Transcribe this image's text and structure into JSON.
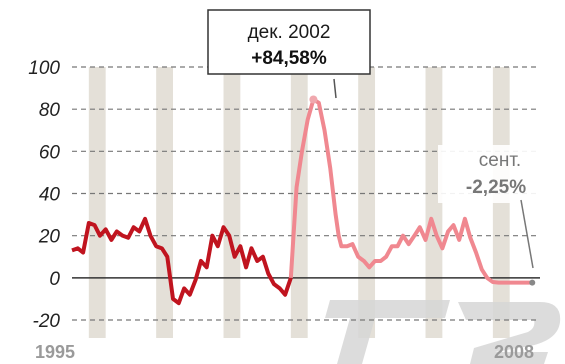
{
  "chart_data": {
    "type": "line",
    "xlim": [
      1995,
      2008.9
    ],
    "ylim": [
      -20,
      100
    ],
    "y_ticks": [
      100,
      80,
      60,
      40,
      20,
      0,
      -20
    ],
    "x_tick_labels": [
      "1995",
      "2008"
    ],
    "grid": true,
    "series": [
      {
        "x": [
          1995.0,
          1995.17,
          1995.33,
          1995.5,
          1995.67,
          1995.83,
          1996.0,
          1996.17,
          1996.33,
          1996.5,
          1996.67,
          1996.83,
          1997.0,
          1997.17,
          1997.33,
          1997.5,
          1997.67,
          1997.83,
          1998.0,
          1998.17,
          1998.33,
          1998.5,
          1998.67,
          1998.83,
          1999.0,
          1999.17,
          1999.33,
          1999.5,
          1999.67,
          1999.83,
          2000.0,
          2000.17,
          2000.33,
          2000.5,
          2000.67,
          2000.83,
          2001.0,
          2001.17,
          2001.33,
          2001.5,
          2001.67,
          2001.83,
          2002.0,
          2002.17,
          2002.33,
          2002.5,
          2002.67,
          2002.83,
          2002.92,
          2003.0,
          2003.17,
          2003.33,
          2003.5,
          2003.67,
          2003.83,
          2004.0,
          2004.17,
          2004.33,
          2004.5,
          2004.67,
          2004.83,
          2005.0,
          2005.17,
          2005.33,
          2005.5,
          2005.67,
          2005.83,
          2006.0,
          2006.17,
          2006.33,
          2006.5,
          2006.67,
          2006.83,
          2007.0,
          2007.17,
          2007.33,
          2007.5,
          2007.67,
          2007.83,
          2008.0,
          2008.17,
          2008.33,
          2008.5,
          2008.67
        ],
        "values": [
          13,
          14,
          12,
          26,
          25,
          20,
          23,
          18,
          22,
          20,
          19,
          24,
          22,
          28,
          20,
          15,
          14,
          10,
          -10,
          -12,
          -5,
          -8,
          -1,
          8,
          5,
          20,
          15,
          24,
          20,
          10,
          15,
          5,
          14,
          8,
          10,
          2,
          -3,
          -5,
          -8,
          0,
          43,
          60,
          75,
          84.58,
          83,
          70,
          52,
          30,
          20,
          15,
          15,
          16,
          10,
          8,
          5,
          8,
          8,
          10,
          15,
          15,
          20,
          16,
          20,
          24,
          18,
          28,
          20,
          14,
          22,
          25,
          18,
          28,
          19,
          12,
          4,
          0,
          -2,
          -2.25,
          -2.25,
          -2.25,
          -2.25,
          -2.25,
          -2.25,
          -2.25
        ]
      }
    ],
    "colors": {
      "line_early": "#c0141f",
      "line_late": "#f08890",
      "peak_marker": "#f0a8ae",
      "band": "#e4e0d8",
      "grid": "#777777"
    },
    "annotations": [
      {
        "date": "дек. 2002",
        "value": "+84,58%"
      },
      {
        "date": "сент.",
        "value": "-2,25%"
      }
    ],
    "watermark": "T2"
  }
}
